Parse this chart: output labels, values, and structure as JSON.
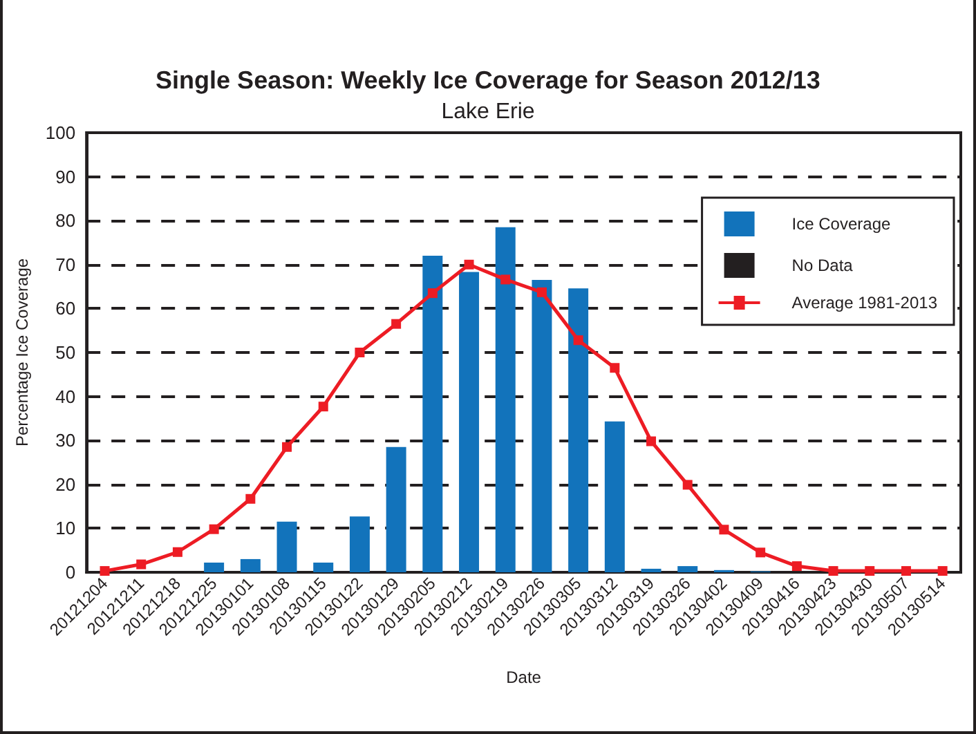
{
  "chart_data": {
    "type": "bar",
    "title": "Single Season: Weekly Ice Coverage for Season 2012/13",
    "subtitle": "Lake Erie",
    "xlabel": "Date",
    "ylabel": "Percentage Ice Coverage",
    "categories": [
      "20121204",
      "20121211",
      "20121218",
      "20121225",
      "20130101",
      "20130108",
      "20130115",
      "20130122",
      "20130129",
      "20130205",
      "20130212",
      "20130219",
      "20130226",
      "20130305",
      "20130312",
      "20130319",
      "20130326",
      "20130402",
      "20130409",
      "20130416",
      "20130423",
      "20130430",
      "20130507",
      "20130514"
    ],
    "series": [
      {
        "name": "Ice Coverage",
        "color": "#1273bb",
        "values": [
          0,
          0,
          0,
          2.2,
          3,
          11.5,
          2.2,
          12.7,
          28.5,
          72,
          68.3,
          78.5,
          66.5,
          64.6,
          34.3,
          0.8,
          1.4,
          0.5,
          0.2,
          0,
          0,
          0,
          0,
          0
        ]
      },
      {
        "name": "No Data",
        "color": "#231f20",
        "values": [
          null,
          null,
          null,
          null,
          null,
          null,
          null,
          null,
          null,
          null,
          null,
          null,
          null,
          null,
          null,
          null,
          null,
          null,
          null,
          null,
          null,
          null,
          null,
          null
        ]
      },
      {
        "name": "Average 1981-2013",
        "type": "line",
        "color": "#ed1c24",
        "marker": "square",
        "values": [
          0.3,
          1.8,
          4.6,
          9.8,
          16.7,
          28.5,
          37.7,
          50,
          56.5,
          63.5,
          70,
          66.6,
          63.7,
          52.8,
          46.5,
          29.8,
          19.9,
          9.7,
          4.5,
          1.4,
          0.3,
          0.3,
          0.3,
          0.3
        ]
      }
    ],
    "ylim": [
      0,
      100
    ],
    "yticks": [
      0,
      10,
      20,
      30,
      40,
      50,
      60,
      70,
      80,
      90,
      100
    ],
    "grid": "y",
    "legend": "top right"
  }
}
